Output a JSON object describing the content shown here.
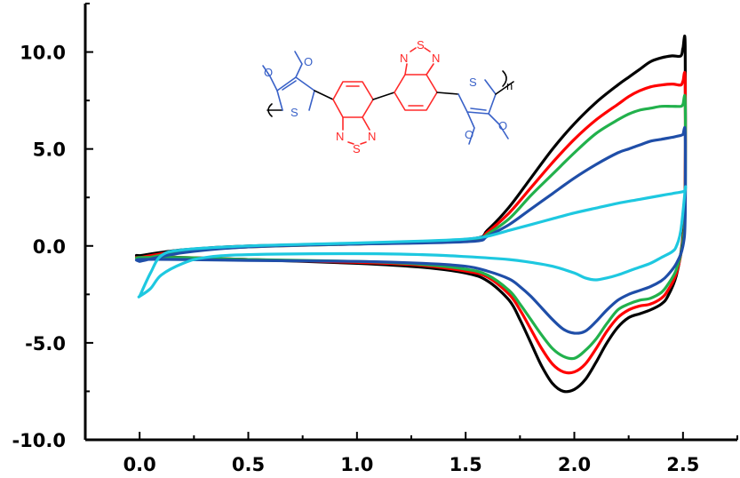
{
  "chart_data": {
    "type": "line",
    "title": "",
    "xlabel": "",
    "ylabel": "",
    "xlim": [
      -0.25,
      2.75
    ],
    "ylim": [
      -10.0,
      12.5
    ],
    "x_ticks": [
      0.0,
      0.5,
      1.0,
      1.5,
      2.0,
      2.5
    ],
    "x_tick_labels": [
      "0.0",
      "0.5",
      "1.0",
      "1.5",
      "2.0",
      "2.5"
    ],
    "y_ticks": [
      -10.0,
      -5.0,
      0.0,
      5.0,
      10.0
    ],
    "y_tick_labels": [
      "-10.0",
      "-5.0",
      "0.0",
      "5.0",
      "10.0"
    ],
    "grid": false,
    "legend": "none",
    "series": [
      {
        "color": "#000000",
        "forward": {
          "x": [
            0.0,
            0.2,
            0.5,
            1.0,
            1.3,
            1.55,
            1.6,
            1.7,
            1.8,
            1.9,
            2.0,
            2.1,
            2.2,
            2.25,
            2.3,
            2.35,
            2.4,
            2.45,
            2.49,
            2.5,
            2.51
          ],
          "y": [
            -0.5,
            -0.2,
            0.0,
            0.1,
            0.2,
            0.4,
            0.8,
            2.0,
            3.5,
            5.0,
            6.3,
            7.4,
            8.3,
            8.7,
            9.1,
            9.5,
            9.7,
            9.8,
            9.8,
            10.2,
            10.3
          ]
        },
        "reverse": {
          "x": [
            2.51,
            2.5,
            2.47,
            2.43,
            2.4,
            2.35,
            2.3,
            2.25,
            2.2,
            2.15,
            2.1,
            2.05,
            2.0,
            1.95,
            1.9,
            1.85,
            1.8,
            1.75,
            1.7,
            1.6,
            1.5,
            1.3,
            1.0,
            0.5,
            0.2,
            0.0
          ],
          "y": [
            3.0,
            0.5,
            -1.5,
            -2.6,
            -3.0,
            -3.3,
            -3.5,
            -3.7,
            -4.2,
            -5.0,
            -6.0,
            -6.9,
            -7.4,
            -7.5,
            -7.1,
            -6.2,
            -5.0,
            -3.8,
            -2.8,
            -1.8,
            -1.4,
            -1.1,
            -0.9,
            -0.7,
            -0.6,
            -0.5
          ]
        }
      },
      {
        "color": "#ff0000",
        "forward": {
          "x": [
            0.0,
            0.2,
            0.5,
            1.0,
            1.3,
            1.55,
            1.6,
            1.7,
            1.8,
            1.9,
            2.0,
            2.1,
            2.2,
            2.25,
            2.3,
            2.35,
            2.4,
            2.45,
            2.49,
            2.5,
            2.51
          ],
          "y": [
            -0.6,
            -0.25,
            -0.05,
            0.1,
            0.18,
            0.35,
            0.7,
            1.7,
            3.0,
            4.3,
            5.5,
            6.5,
            7.3,
            7.7,
            8.0,
            8.2,
            8.3,
            8.35,
            8.3,
            8.5,
            8.5
          ]
        },
        "reverse": {
          "x": [
            2.51,
            2.5,
            2.47,
            2.43,
            2.4,
            2.35,
            2.3,
            2.25,
            2.2,
            2.15,
            2.1,
            2.05,
            2.0,
            1.95,
            1.9,
            1.85,
            1.8,
            1.75,
            1.7,
            1.6,
            1.5,
            1.3,
            1.0,
            0.5,
            0.2,
            0.0
          ],
          "y": [
            2.5,
            0.3,
            -1.4,
            -2.3,
            -2.7,
            -3.0,
            -3.1,
            -3.3,
            -3.7,
            -4.4,
            -5.3,
            -6.1,
            -6.5,
            -6.5,
            -6.1,
            -5.3,
            -4.3,
            -3.3,
            -2.5,
            -1.6,
            -1.3,
            -1.0,
            -0.85,
            -0.7,
            -0.6,
            -0.6
          ]
        }
      },
      {
        "color": "#22b14c",
        "forward": {
          "x": [
            0.0,
            0.2,
            0.5,
            1.0,
            1.3,
            1.55,
            1.6,
            1.7,
            1.8,
            1.9,
            2.0,
            2.1,
            2.2,
            2.25,
            2.3,
            2.35,
            2.4,
            2.45,
            2.49,
            2.5,
            2.51
          ],
          "y": [
            -0.7,
            -0.3,
            -0.05,
            0.1,
            0.17,
            0.3,
            0.6,
            1.4,
            2.6,
            3.7,
            4.8,
            5.8,
            6.5,
            6.8,
            7.0,
            7.1,
            7.2,
            7.2,
            7.2,
            7.3,
            7.4
          ]
        },
        "reverse": {
          "x": [
            2.51,
            2.5,
            2.47,
            2.43,
            2.4,
            2.35,
            2.3,
            2.25,
            2.2,
            2.15,
            2.1,
            2.05,
            2.0,
            1.95,
            1.9,
            1.85,
            1.8,
            1.75,
            1.7,
            1.6,
            1.5,
            1.3,
            1.0,
            0.5,
            0.2,
            0.0
          ],
          "y": [
            2.2,
            0.2,
            -1.2,
            -2.0,
            -2.4,
            -2.7,
            -2.8,
            -3.0,
            -3.3,
            -4.0,
            -4.8,
            -5.4,
            -5.8,
            -5.7,
            -5.3,
            -4.6,
            -3.8,
            -3.0,
            -2.3,
            -1.5,
            -1.2,
            -0.95,
            -0.8,
            -0.7,
            -0.6,
            -0.6
          ]
        }
      },
      {
        "color": "#1f4ea8",
        "forward": {
          "x": [
            0.0,
            0.2,
            0.5,
            1.0,
            1.3,
            1.55,
            1.6,
            1.7,
            1.8,
            1.9,
            2.0,
            2.1,
            2.2,
            2.25,
            2.3,
            2.35,
            2.4,
            2.45,
            2.49,
            2.5,
            2.51
          ],
          "y": [
            -0.8,
            -0.35,
            -0.05,
            0.1,
            0.15,
            0.25,
            0.5,
            1.1,
            1.9,
            2.7,
            3.5,
            4.2,
            4.8,
            5.0,
            5.2,
            5.4,
            5.5,
            5.6,
            5.7,
            5.75,
            5.8
          ]
        },
        "reverse": {
          "x": [
            2.51,
            2.5,
            2.47,
            2.43,
            2.4,
            2.35,
            2.3,
            2.25,
            2.2,
            2.15,
            2.1,
            2.05,
            2.0,
            1.95,
            1.9,
            1.85,
            1.8,
            1.75,
            1.7,
            1.6,
            1.5,
            1.3,
            1.0,
            0.5,
            0.2,
            0.0
          ],
          "y": [
            1.5,
            0.0,
            -0.9,
            -1.5,
            -1.8,
            -2.1,
            -2.3,
            -2.5,
            -2.8,
            -3.3,
            -3.9,
            -4.4,
            -4.5,
            -4.3,
            -3.8,
            -3.2,
            -2.6,
            -2.1,
            -1.7,
            -1.3,
            -1.05,
            -0.9,
            -0.8,
            -0.75,
            -0.7,
            -0.7
          ]
        }
      },
      {
        "color": "#1ec8e0",
        "forward": {
          "x": [
            0.0,
            0.05,
            0.1,
            0.2,
            0.5,
            1.0,
            1.3,
            1.5,
            1.6,
            1.7,
            1.8,
            1.9,
            2.0,
            2.1,
            2.2,
            2.3,
            2.4,
            2.45,
            2.5,
            2.51
          ],
          "y": [
            -2.6,
            -1.4,
            -0.5,
            -0.2,
            0.0,
            0.15,
            0.25,
            0.35,
            0.5,
            0.8,
            1.1,
            1.4,
            1.7,
            1.95,
            2.2,
            2.4,
            2.6,
            2.7,
            2.8,
            2.9
          ]
        },
        "reverse": {
          "x": [
            2.51,
            2.49,
            2.47,
            2.45,
            2.4,
            2.35,
            2.3,
            2.25,
            2.2,
            2.15,
            2.1,
            2.05,
            2.0,
            1.9,
            1.8,
            1.7,
            1.5,
            1.3,
            1.0,
            0.5,
            0.3,
            0.2,
            0.1,
            0.05,
            0.0
          ],
          "y": [
            2.9,
            0.8,
            0.0,
            -0.3,
            -0.6,
            -0.9,
            -1.1,
            -1.3,
            -1.5,
            -1.65,
            -1.75,
            -1.65,
            -1.4,
            -1.05,
            -0.85,
            -0.7,
            -0.55,
            -0.45,
            -0.4,
            -0.45,
            -0.6,
            -0.9,
            -1.5,
            -2.2,
            -2.6
          ]
        }
      }
    ]
  },
  "inset_molecule": {
    "atom_labels": {
      "sulfur": "S",
      "nitrogen": "N",
      "oxygen": "O",
      "repeat_index": "n"
    },
    "colors": {
      "thiophene": "#3a62c8",
      "benzothiadiazole": "#ff2a2a",
      "backbone": "#000000"
    }
  }
}
